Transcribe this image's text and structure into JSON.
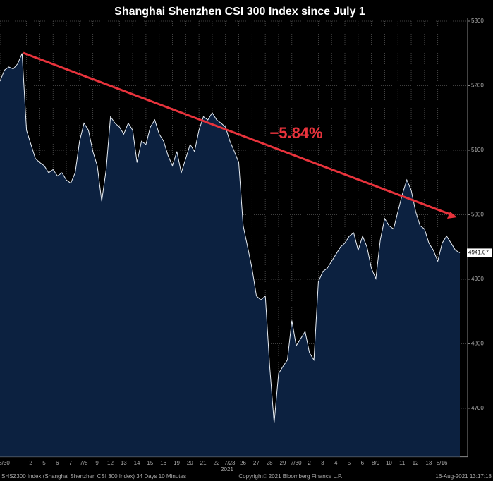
{
  "chart_data": {
    "type": "area",
    "title": "Shanghai Shenzhen CSI 300 Index since July 1",
    "annotation": "−5.84%",
    "year_label": "2021",
    "last_price": 4941.07,
    "footer_left": "SHSZ300 Index (Shanghai Shenzhen CSI 300 Index) 34 Days 10 Minutes",
    "footer_center": "Copyright© 2021 Bloomberg Finance L.P.",
    "footer_right": "16-Aug-2021 13:17:18",
    "categories": [
      "6/30",
      null,
      null,
      null,
      null,
      null,
      "2",
      null,
      null,
      "5",
      null,
      null,
      "6",
      null,
      null,
      "7",
      null,
      null,
      "7/8",
      null,
      null,
      "9",
      null,
      null,
      "12",
      null,
      null,
      "13",
      null,
      null,
      "14",
      null,
      null,
      "15",
      null,
      null,
      "16",
      null,
      null,
      "19",
      null,
      null,
      "20",
      null,
      null,
      "21",
      null,
      null,
      "22",
      null,
      null,
      "7/23",
      null,
      null,
      "26",
      null,
      null,
      "27",
      null,
      null,
      "28",
      null,
      null,
      "29",
      null,
      null,
      "7/30",
      null,
      null,
      "2",
      null,
      null,
      "3",
      null,
      null,
      "4",
      null,
      null,
      "5",
      null,
      null,
      "6",
      null,
      null,
      "8/9",
      null,
      null,
      "10",
      null,
      null,
      "11",
      null,
      null,
      "12",
      null,
      null,
      "13",
      null,
      null,
      "8/16",
      null,
      null,
      null,
      null,
      null
    ],
    "values": [
      5207,
      5224,
      5229,
      5226,
      5234,
      5250,
      5131,
      5109,
      5087,
      5081,
      5076,
      5065,
      5070,
      5060,
      5065,
      5054,
      5049,
      5065,
      5114,
      5142,
      5131,
      5098,
      5076,
      5021,
      5070,
      5152,
      5142,
      5136,
      5125,
      5142,
      5131,
      5081,
      5114,
      5109,
      5136,
      5147,
      5125,
      5114,
      5092,
      5076,
      5098,
      5065,
      5087,
      5109,
      5098,
      5131,
      5152,
      5147,
      5158,
      5147,
      5142,
      5136,
      5114,
      5098,
      5081,
      4983,
      4950,
      4917,
      4874,
      4868,
      4874,
      4765,
      4677,
      4754,
      4765,
      4775,
      4836,
      4797,
      4808,
      4819,
      4786,
      4775,
      4896,
      4912,
      4917,
      4928,
      4939,
      4950,
      4956,
      4967,
      4972,
      4945,
      4967,
      4950,
      4917,
      4901,
      4961,
      4994,
      4983,
      4978,
      5005,
      5032,
      5054,
      5038,
      5005,
      4983,
      4978,
      4956,
      4945,
      4928,
      4956,
      4967,
      4956,
      4945,
      4941.07
    ],
    "color": "#e8eef5",
    "fill": "#0c2140",
    "ylim": [
      4625,
      5300
    ],
    "yticks": [
      4700,
      4800,
      4900,
      5000,
      5100,
      5200,
      5300
    ],
    "grid": true
  }
}
